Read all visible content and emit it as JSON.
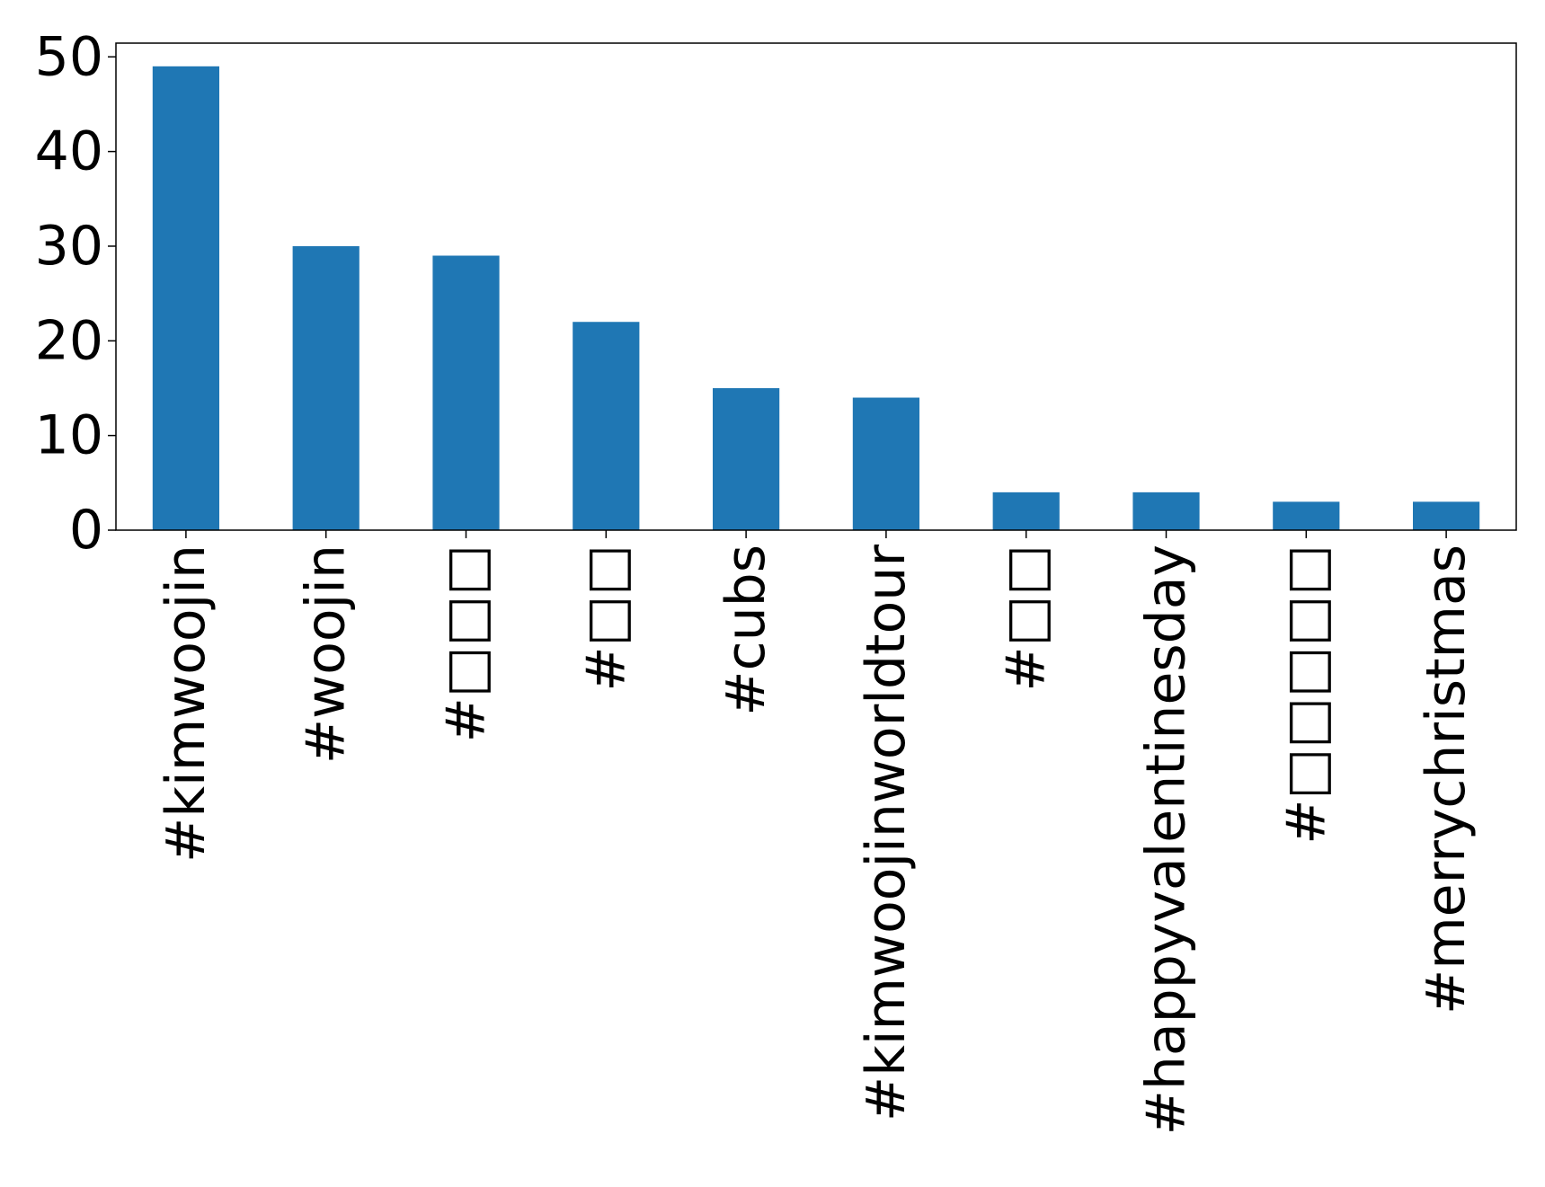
{
  "chart_data": {
    "type": "bar",
    "title": "",
    "xlabel": "",
    "ylabel": "",
    "categories": [
      "#kimwoojin",
      "#woojin",
      "#□□□",
      "#□□",
      "#cubs",
      "#kimwoojinworldtour",
      "#□□",
      "#happyvalentinesday",
      "#□□□□□",
      "#merrychristmas"
    ],
    "values": [
      49,
      30,
      29,
      22,
      15,
      14,
      4,
      4,
      3,
      3
    ],
    "ylim": [
      0,
      51.45
    ],
    "yticks": [
      0,
      10,
      20,
      30,
      40,
      50
    ],
    "grid": false,
    "legend": "none",
    "bar_color": "#1f77b4"
  }
}
